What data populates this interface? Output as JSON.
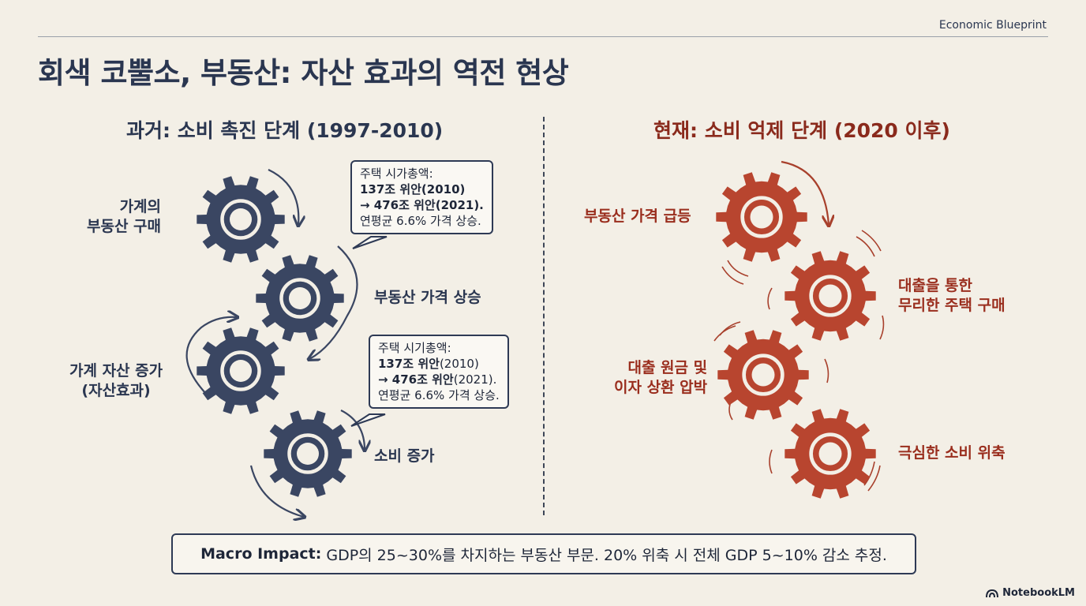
{
  "brand": "Economic Blueprint",
  "title": "회색 코뿔소, 부동산: 자산 효과의 역전 현상",
  "left": {
    "heading": "과거: 소비 촉진 단계 (1997-2010)",
    "labels": {
      "purchase": [
        "가계의",
        "부동산 구매"
      ],
      "price_up": "부동산 가격 상승",
      "asset": [
        "가계 자산 증가",
        "(자산효과)"
      ],
      "consume": "소비 증가"
    },
    "callout1": {
      "line1": "주택 시가총액:",
      "line2": "137조 위안(2010)",
      "line3": "→ 476조 위안(2021).",
      "line4": "연평균 6.6% 가격 상승."
    },
    "callout2": {
      "line1": "주택 시기총액:",
      "line2a": "137조 위안",
      "line2b": "(2010)",
      "line3a": "→ 476조 위안",
      "line3b": "(2021).",
      "line4": "연평균 6.6% 가격 상승."
    }
  },
  "right": {
    "heading": "현재: 소비 억제 단계 (2020 이후)",
    "labels": {
      "surge": "부동산 가격 급등",
      "loan_buy": [
        "대출을 통한",
        "무리한 주택 구매"
      ],
      "pressure": [
        "대출 원금 및",
        "이자 상환 압박"
      ],
      "shrink": "극심한 소비 위축"
    }
  },
  "macro": {
    "head": "Macro Impact:",
    "text": "GDP의 25~30%를 차지하는 부동산 부문. 20% 위축 시 전체 GDP 5~10% 감소 추정."
  },
  "footer": "NotebookLM",
  "colors": {
    "navy": "#3a4662",
    "red": "#b8452f",
    "bg": "#f3efe6"
  }
}
